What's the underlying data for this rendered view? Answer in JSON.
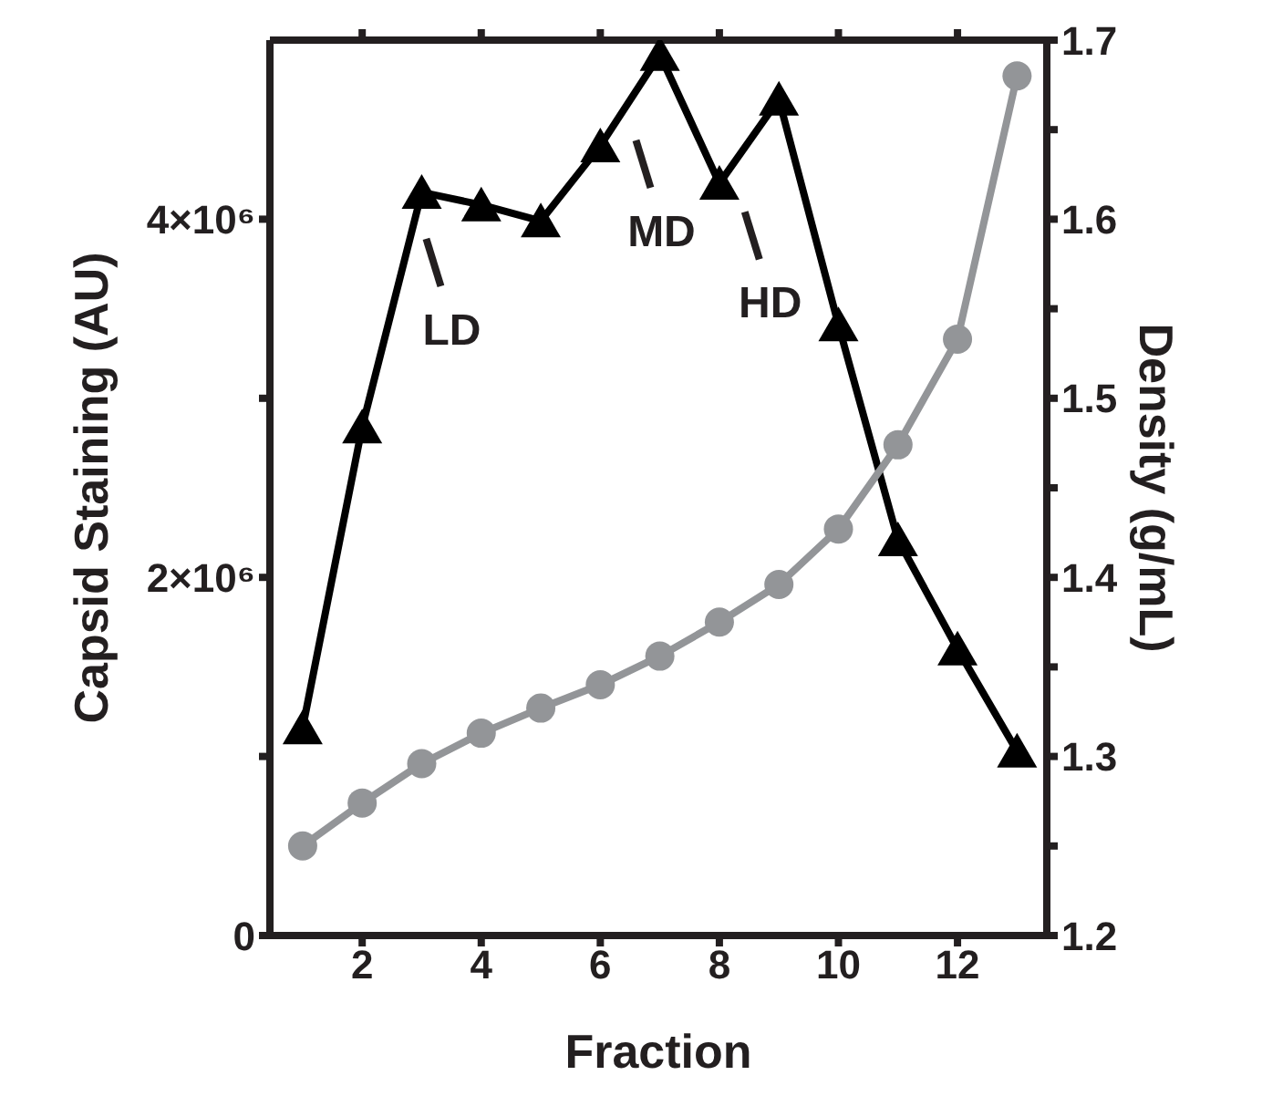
{
  "chart_data": {
    "type": "line",
    "xlabel": "Fraction",
    "ylabel": "Capsid Staining (AU)",
    "y2label": "Density (g/mL)",
    "x": [
      1,
      2,
      3,
      4,
      5,
      6,
      7,
      8,
      9,
      10,
      11,
      12,
      13
    ],
    "series": [
      {
        "color": "#000000",
        "marker": "triangle",
        "values": [
          1160000,
          2840000,
          4150000,
          4080000,
          3990000,
          4410000,
          4920000,
          4200000,
          4670000,
          3410000,
          2210000,
          1600000,
          1030000
        ]
      },
      {
        "color": "#939598",
        "marker": "circle",
        "axis": "y2",
        "values": [
          1.25,
          1.274,
          1.296,
          1.313,
          1.327,
          1.34,
          1.356,
          1.375,
          1.396,
          1.427,
          1.474,
          1.533,
          1.68
        ]
      }
    ],
    "xlim": [
      0.45,
      13.5
    ],
    "xticks": [
      2,
      4,
      6,
      8,
      10,
      12
    ],
    "ylim": [
      0,
      5000000
    ],
    "yticks": [
      0,
      {
        "value": 1000000,
        "label": null
      },
      {
        "value": 2000000,
        "label": "2×10⁶"
      },
      {
        "value": 3000000,
        "label": null
      },
      {
        "value": 4000000,
        "label": "4×10⁶"
      }
    ],
    "y2lim": [
      1.2,
      1.7
    ],
    "y2ticks": [
      1.2,
      {
        "value": 1.25,
        "label": null
      },
      1.3,
      {
        "value": 1.35,
        "label": null
      },
      1.4,
      {
        "value": 1.45,
        "label": null
      },
      1.5,
      {
        "value": 1.55,
        "label": null
      },
      1.6,
      {
        "value": 1.65,
        "label": null
      },
      1.7
    ],
    "annotations": [
      "LD",
      "MD",
      "HD"
    ]
  }
}
